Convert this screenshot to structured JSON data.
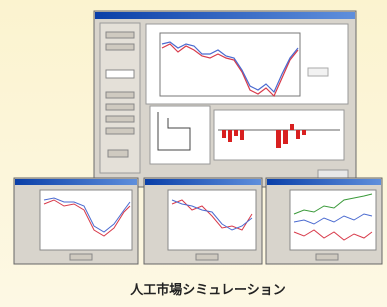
{
  "caption": "人工市場シミュレーション"
}
